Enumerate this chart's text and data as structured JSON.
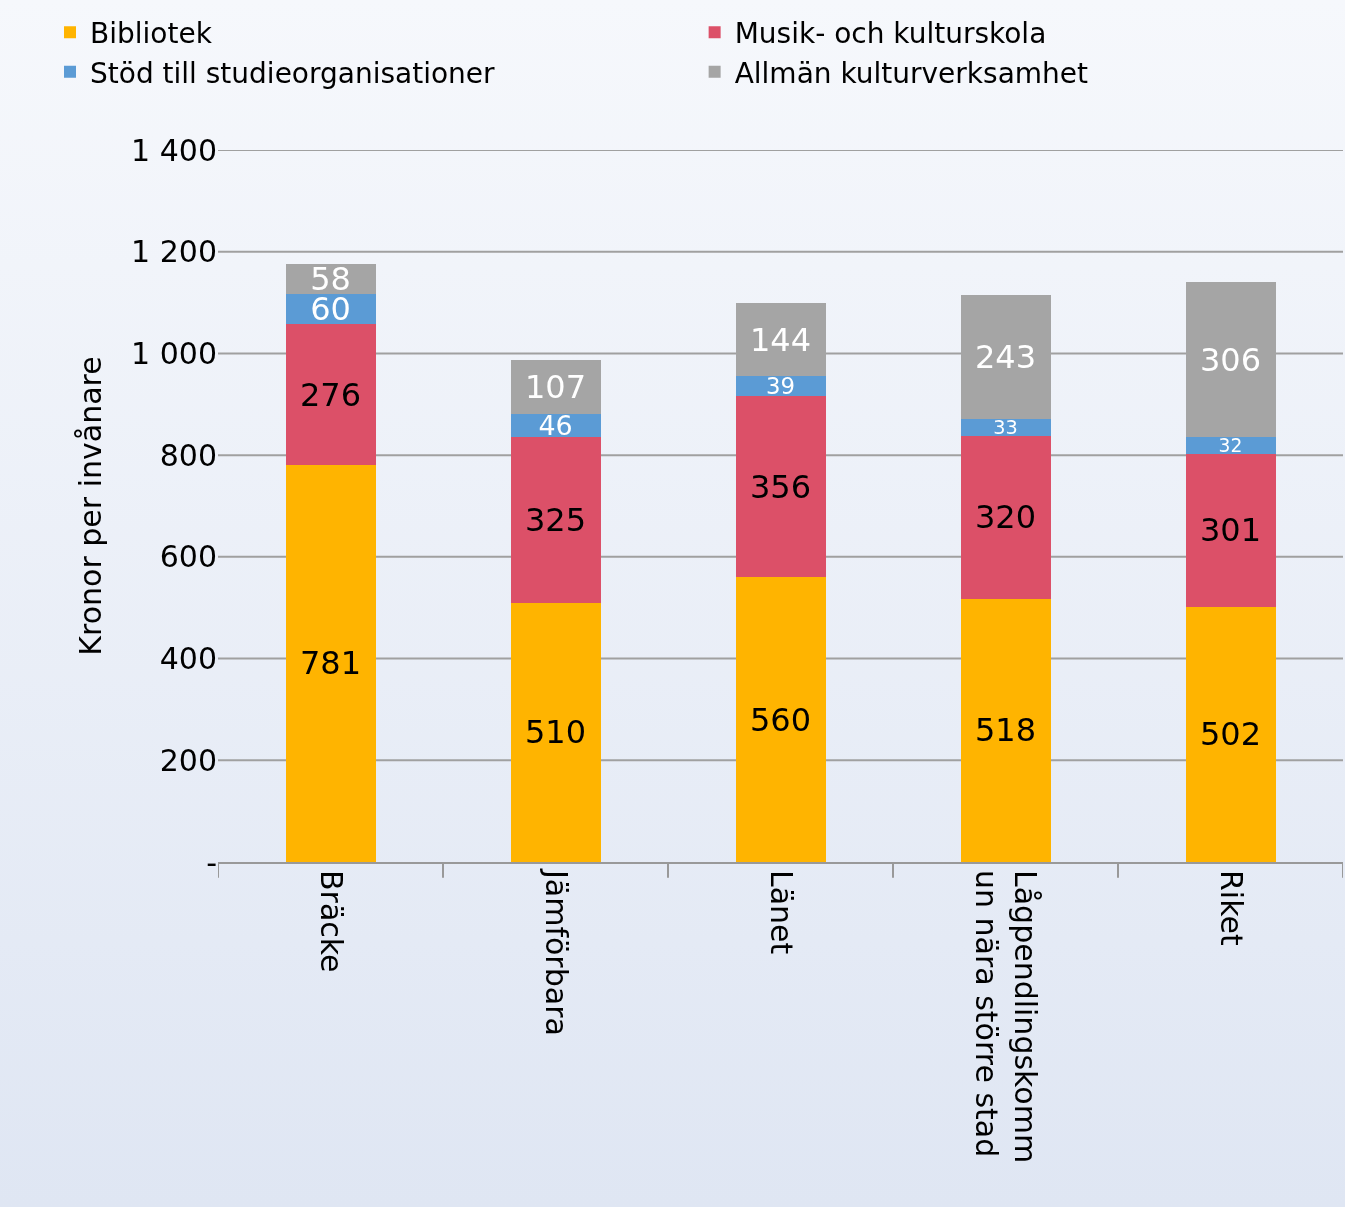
{
  "chart_data": {
    "type": "bar",
    "stacked": true,
    "ylabel": "Kronor per invånare",
    "categories": [
      "Bräcke",
      "Jämförbara",
      "Länet",
      "Lågpendlingskommun nära större stad",
      "Riket"
    ],
    "series": [
      {
        "name": "Bibliotek",
        "color": "#ffb400",
        "values": [
          781,
          510,
          560,
          518,
          502
        ]
      },
      {
        "name": "Musik- och kulturskola",
        "color": "#dc5068",
        "values": [
          276,
          325,
          356,
          320,
          301
        ]
      },
      {
        "name": "Stöd till studieorganisationer",
        "color": "#5b9bd5",
        "values": [
          60,
          46,
          39,
          33,
          32
        ]
      },
      {
        "name": "Allmän kulturverksamhet",
        "color": "#a5a5a5",
        "values": [
          58,
          107,
          144,
          243,
          306
        ]
      }
    ],
    "ylim": [
      0,
      1400
    ],
    "yticks": [
      {
        "value": 0,
        "label": "-"
      },
      200,
      400,
      600,
      800,
      {
        "value": 1000,
        "label": "1 000"
      },
      {
        "value": 1200,
        "label": "1 200"
      },
      {
        "value": 1400,
        "label": "1 400"
      }
    ],
    "grid": "y",
    "legend": "top",
    "data_labels": true
  }
}
